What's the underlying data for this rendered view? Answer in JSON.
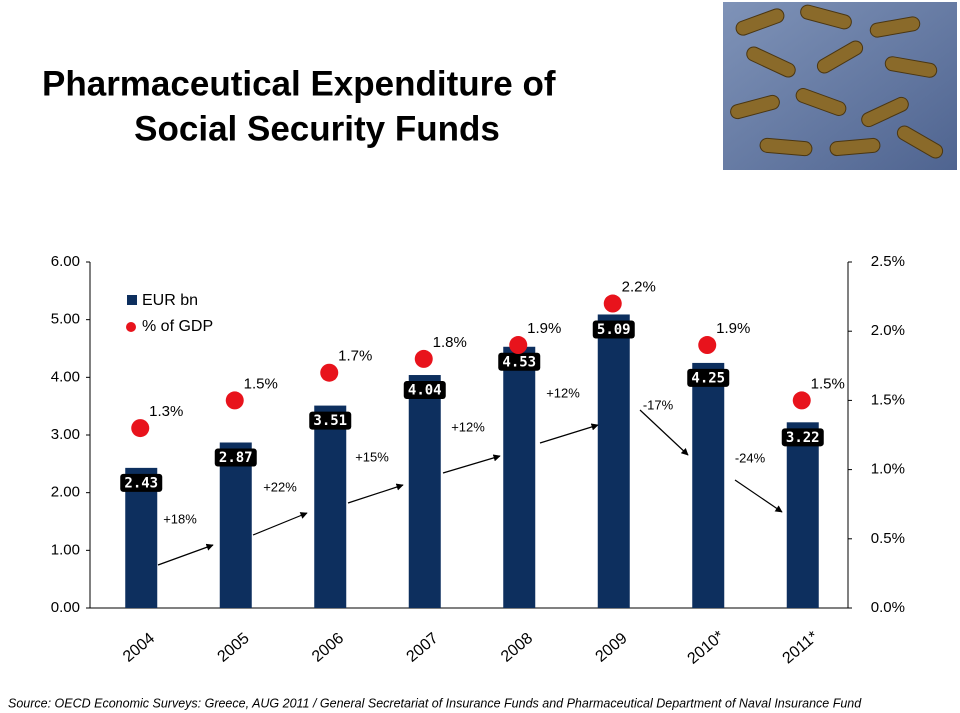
{
  "chart_data": {
    "type": "bar",
    "title": [
      "Pharmaceutical Expenditure of",
      "Social Security Funds"
    ],
    "categories": [
      "2004",
      "2005",
      "2006",
      "2007",
      "2008",
      "2009",
      "2010*",
      "2011*"
    ],
    "series": [
      {
        "name": "EUR bn",
        "color": "#0d2f5e",
        "values": [
          2.43,
          2.87,
          3.51,
          4.04,
          4.53,
          5.09,
          4.25,
          3.22
        ]
      },
      {
        "name": "% of GDP",
        "color": "#e8131c",
        "type": "dot",
        "axis": "y2",
        "values": [
          1.3,
          1.5,
          1.7,
          1.8,
          1.9,
          2.2,
          1.9,
          1.5
        ],
        "value_labels": [
          "1.3%",
          "1.5%",
          "1.7%",
          "1.8%",
          "1.9%",
          "2.2%",
          "1.9%",
          "1.5%"
        ]
      }
    ],
    "ylim": [
      0,
      6
    ],
    "yticks": [
      {
        "value": 0,
        "label": "0.00"
      },
      {
        "value": 1,
        "label": "1.00"
      },
      {
        "value": 2,
        "label": "2.00"
      },
      {
        "value": 3,
        "label": "3.00"
      },
      {
        "value": 4,
        "label": "4.00"
      },
      {
        "value": 5,
        "label": "5.00"
      },
      {
        "value": 6,
        "label": "6.00"
      }
    ],
    "y2lim": [
      0,
      2.5
    ],
    "y2ticks": [
      {
        "value": 0,
        "label": "0.0%"
      },
      {
        "value": 0.5,
        "label": "0.5%"
      },
      {
        "value": 1,
        "label": "1.0%"
      },
      {
        "value": 1.5,
        "label": "1.5%"
      },
      {
        "value": 2,
        "label": "2.0%"
      },
      {
        "value": 2.5,
        "label": "2.5%"
      }
    ],
    "annotations": [
      "+18%",
      "+22%",
      "+15%",
      "+12%",
      "+12%",
      "-17%",
      "-24%"
    ],
    "source": "Source: OECD Economic Surveys: Greece, AUG 2011 / General Secretariat of Insurance Funds and Pharmaceutical Department of Naval Insurance Fund"
  }
}
